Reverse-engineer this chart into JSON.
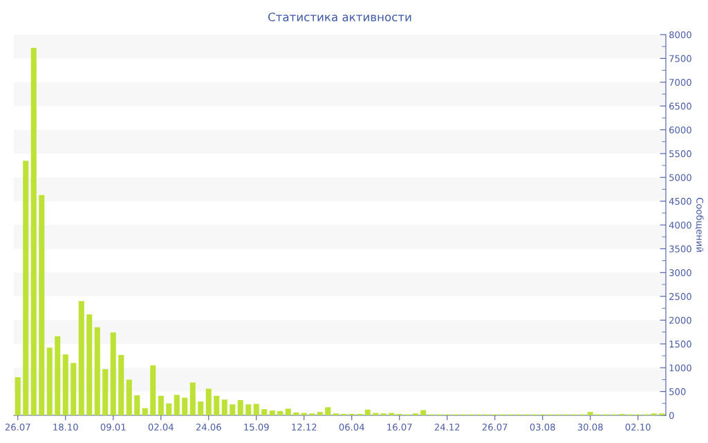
{
  "chart_data": {
    "type": "bar",
    "title": "Статистика активности",
    "ylabel": "Сообщений",
    "categories": [
      "26.07",
      null,
      null,
      null,
      null,
      null,
      "18.10",
      null,
      null,
      null,
      null,
      null,
      "09.01",
      null,
      null,
      null,
      null,
      null,
      "02.04",
      null,
      null,
      null,
      null,
      null,
      "24.06",
      null,
      null,
      null,
      null,
      null,
      "15.09",
      null,
      null,
      null,
      null,
      null,
      "12.12",
      null,
      null,
      null,
      null,
      null,
      "06.04",
      null,
      null,
      null,
      null,
      null,
      "16.07",
      null,
      null,
      null,
      null,
      null,
      "24.12",
      null,
      null,
      null,
      null,
      null,
      "26.07",
      null,
      null,
      null,
      null,
      null,
      "03.08",
      null,
      null,
      null,
      null,
      null,
      "30.08",
      null,
      null,
      null,
      null,
      null,
      "02.10",
      null,
      null,
      null
    ],
    "values": [
      800,
      5350,
      7720,
      4630,
      1420,
      1660,
      1280,
      1100,
      2400,
      2120,
      1850,
      970,
      1740,
      1270,
      750,
      420,
      150,
      1050,
      410,
      250,
      430,
      370,
      690,
      290,
      560,
      410,
      330,
      230,
      320,
      230,
      240,
      130,
      100,
      90,
      140,
      60,
      50,
      40,
      70,
      170,
      40,
      30,
      30,
      30,
      120,
      50,
      40,
      50,
      30,
      20,
      40,
      110,
      20,
      20,
      20,
      20,
      20,
      20,
      20,
      20,
      20,
      20,
      20,
      20,
      20,
      20,
      20,
      20,
      20,
      20,
      20,
      20,
      70,
      20,
      20,
      20,
      30,
      20,
      20,
      20,
      40,
      40
    ],
    "color": "#bde135",
    "ylim": [
      0,
      8000
    ],
    "yticks": [
      0,
      500,
      1000,
      1500,
      2000,
      2500,
      3000,
      3500,
      4000,
      4500,
      5000,
      5500,
      6000,
      6500,
      7000,
      7500,
      8000
    ],
    "bands": [
      {
        "axis": "y",
        "from": 500,
        "to": 1000,
        "color": "#f7f7f7"
      },
      {
        "axis": "y",
        "from": 1500,
        "to": 2000,
        "color": "#f7f7f7"
      },
      {
        "axis": "y",
        "from": 2500,
        "to": 3000,
        "color": "#f7f7f7"
      },
      {
        "axis": "y",
        "from": 3500,
        "to": 4000,
        "color": "#f7f7f7"
      },
      {
        "axis": "y",
        "from": 4500,
        "to": 5000,
        "color": "#f7f7f7"
      },
      {
        "axis": "y",
        "from": 5500,
        "to": 6000,
        "color": "#f7f7f7"
      },
      {
        "axis": "y",
        "from": 6500,
        "to": 7000,
        "color": "#f7f7f7"
      },
      {
        "axis": "y",
        "from": 7500,
        "to": 8000,
        "color": "#f7f7f7"
      }
    ]
  }
}
